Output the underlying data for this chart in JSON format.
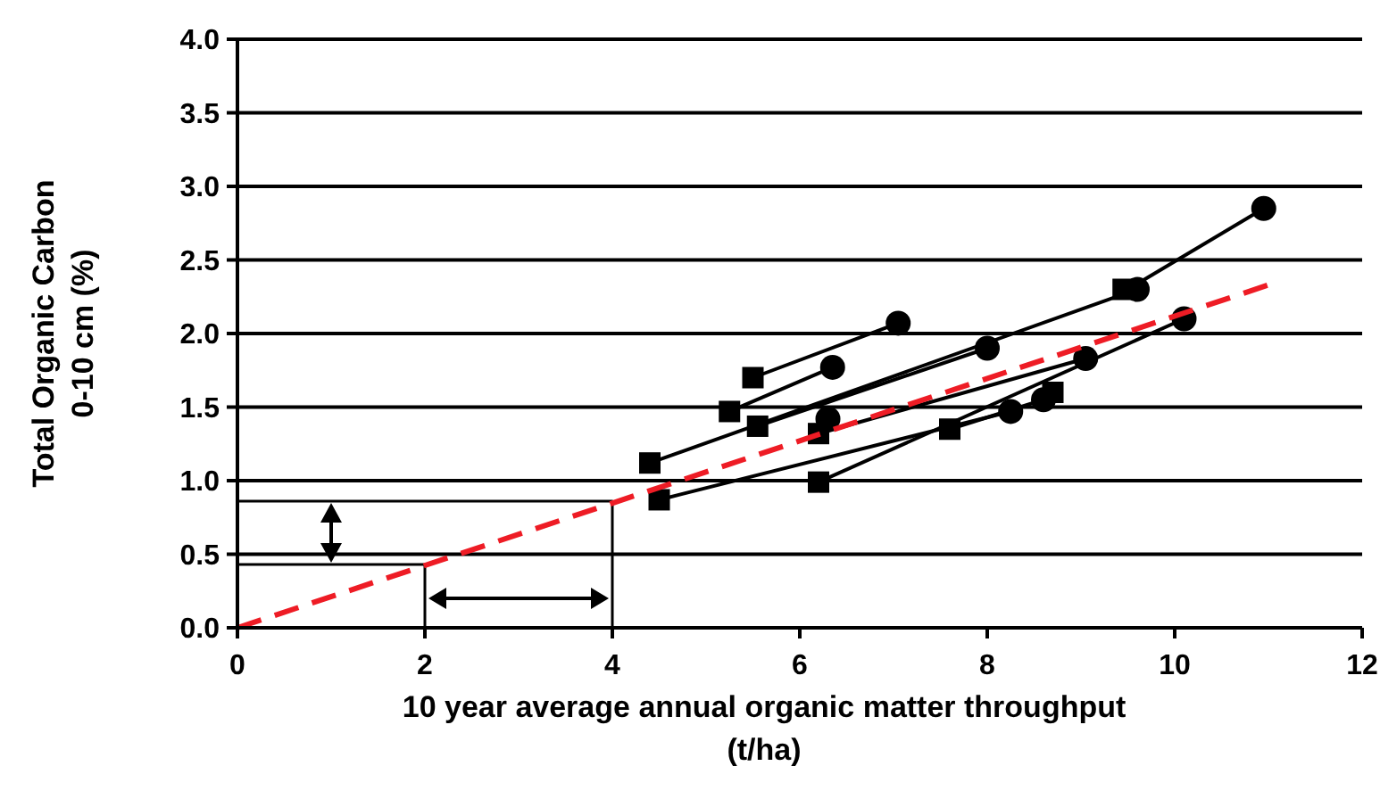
{
  "chart_data": {
    "type": "line",
    "xlabel": "10 year average annual organic matter throughput\n(t/ha)",
    "ylabel": "Total Organic Carbon\n0-10 cm (%)",
    "xlim": [
      0,
      12
    ],
    "xticks": [
      0,
      2,
      4,
      6,
      8,
      10,
      12
    ],
    "ylim": [
      0,
      4
    ],
    "yticks": [
      {
        "value": 0,
        "label": "0.0"
      },
      {
        "value": 0.5,
        "label": "0.5"
      },
      {
        "value": 1,
        "label": "1.0"
      },
      {
        "value": 1.5,
        "label": "1.5"
      },
      {
        "value": 2,
        "label": "2.0"
      },
      {
        "value": 2.5,
        "label": "2.5"
      },
      {
        "value": 3,
        "label": "3.0"
      },
      {
        "value": 3.5,
        "label": "3.5"
      },
      {
        "value": 4,
        "label": "4.0"
      }
    ],
    "grid": "y",
    "series": [
      {
        "color": "#000000",
        "marker": "none",
        "x": [
          0,
          4,
          4
        ],
        "values": [
          0.86,
          0.86,
          0
        ]
      },
      {
        "color": "#000000",
        "marker": "none",
        "x": [
          0,
          2,
          2
        ],
        "values": [
          0.43,
          0.43,
          0
        ]
      },
      {
        "color": "#000000",
        "marker": "none",
        "x": [
          5.5,
          7.05
        ],
        "values": [
          1.7,
          2.07
        ]
      },
      {
        "color": "#000000",
        "marker": "none",
        "x": [
          5.25,
          6.35
        ],
        "values": [
          1.47,
          1.77
        ]
      },
      {
        "color": "#000000",
        "marker": "none",
        "x": [
          5.55,
          8.0
        ],
        "values": [
          1.37,
          1.9
        ]
      },
      {
        "color": "#000000",
        "marker": "none",
        "x": [
          4.4,
          9.6
        ],
        "values": [
          1.12,
          2.3
        ]
      },
      {
        "color": "#000000",
        "marker": "none",
        "x": [
          9.5,
          10.95
        ],
        "values": [
          2.3,
          2.85
        ]
      },
      {
        "color": "#000000",
        "marker": "none",
        "x": [
          6.2,
          9.05
        ],
        "values": [
          1.32,
          1.83
        ]
      },
      {
        "color": "#000000",
        "marker": "none",
        "x": [
          4.5,
          8.25
        ],
        "values": [
          0.87,
          1.47
        ]
      },
      {
        "color": "#000000",
        "marker": "none",
        "x": [
          6.2,
          10.1
        ],
        "values": [
          0.99,
          2.1
        ]
      },
      {
        "color": "#000000",
        "marker": "none",
        "x": [
          7.6,
          8.6
        ],
        "values": [
          1.35,
          1.55
        ]
      },
      {
        "type": "scatter",
        "color": "#000000",
        "marker": "circle",
        "x": [
          7.05,
          6.35,
          8.0,
          9.6,
          10.95,
          9.05,
          8.25,
          10.1,
          8.6,
          6.3
        ],
        "values": [
          2.07,
          1.77,
          1.9,
          2.3,
          2.85,
          1.83,
          1.47,
          2.1,
          1.55,
          1.42
        ]
      },
      {
        "type": "scatter",
        "color": "#000000",
        "marker": "square",
        "x": [
          5.5,
          5.25,
          5.55,
          4.4,
          9.45,
          6.2,
          4.5,
          6.2,
          7.6,
          8.7
        ],
        "values": [
          1.7,
          1.47,
          1.37,
          1.12,
          2.3,
          1.32,
          0.87,
          0.99,
          1.35,
          1.6
        ]
      },
      {
        "color": "#ee1c25",
        "marker": "none",
        "line_style": "dashed",
        "x": [
          0,
          11
        ],
        "values": [
          0,
          2.33
        ]
      }
    ]
  }
}
